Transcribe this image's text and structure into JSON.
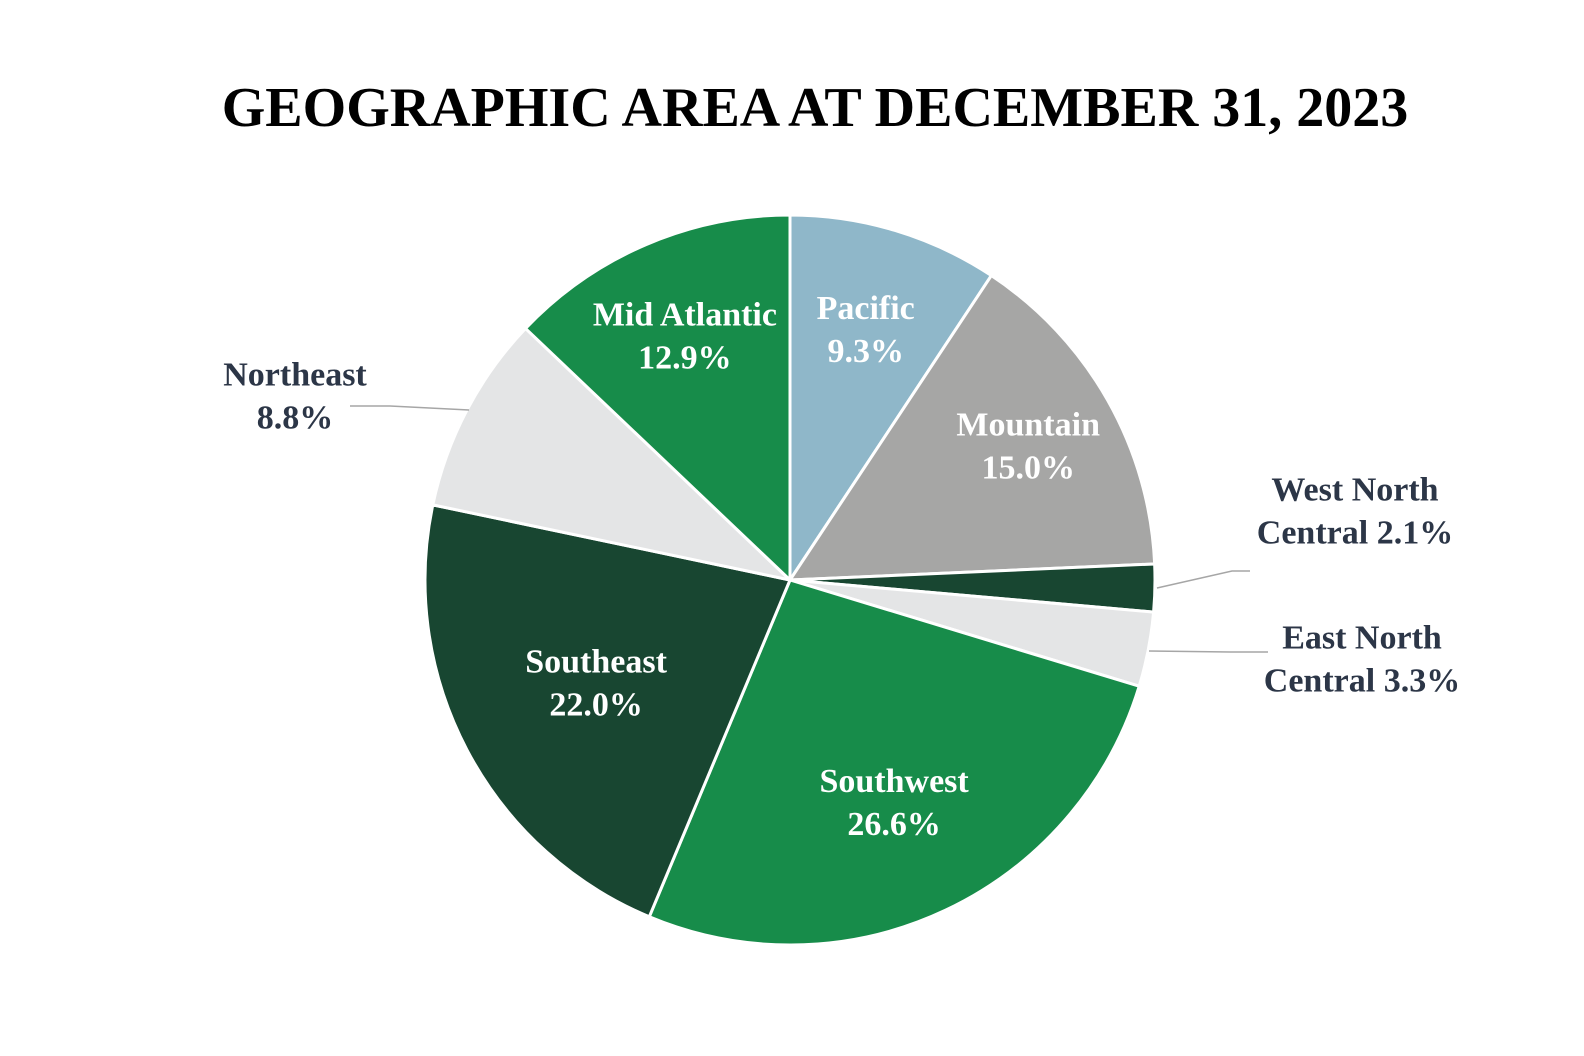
{
  "chart_data": {
    "type": "pie",
    "title": "GEOGRAPHIC AREA AT DECEMBER 31, 2023",
    "unit": "%",
    "slices": [
      {
        "name": "Pacific",
        "value": 9.3,
        "color": "#8fb7c9",
        "label_lines": [
          "Pacific",
          "9.3%"
        ],
        "label_color": "#ffffff",
        "label_position": "inside"
      },
      {
        "name": "Mountain",
        "value": 15.0,
        "color": "#a6a6a5",
        "label_lines": [
          "Mountain",
          "15.0%"
        ],
        "label_color": "#ffffff",
        "label_position": "inside"
      },
      {
        "name": "West North Central",
        "value": 2.1,
        "color": "#184631",
        "label_lines": [
          "West North",
          "Central 2.1%"
        ],
        "label_color": "#2c3647",
        "label_position": "outside"
      },
      {
        "name": "East North Central",
        "value": 3.3,
        "color": "#e4e5e6",
        "label_lines": [
          "East North",
          "Central 3.3%"
        ],
        "label_color": "#2c3647",
        "label_position": "outside"
      },
      {
        "name": "Southwest",
        "value": 26.6,
        "color": "#178c4a",
        "label_lines": [
          "Southwest",
          "26.6%"
        ],
        "label_color": "#ffffff",
        "label_position": "inside"
      },
      {
        "name": "Southeast",
        "value": 22.0,
        "color": "#184631",
        "label_lines": [
          "Southeast",
          "22.0%"
        ],
        "label_color": "#ffffff",
        "label_position": "inside"
      },
      {
        "name": "Northeast",
        "value": 8.8,
        "color": "#e4e5e6",
        "label_lines": [
          "Northeast",
          "8.8%"
        ],
        "label_color": "#2c3647",
        "label_position": "outside"
      },
      {
        "name": "Mid Atlantic",
        "value": 12.9,
        "color": "#178c4a",
        "label_lines": [
          "Mid Atlantic",
          "12.9%"
        ],
        "label_color": "#ffffff",
        "label_position": "inside"
      }
    ],
    "start_angle": "12 o'clock",
    "direction": "clockwise",
    "legend": "none"
  }
}
